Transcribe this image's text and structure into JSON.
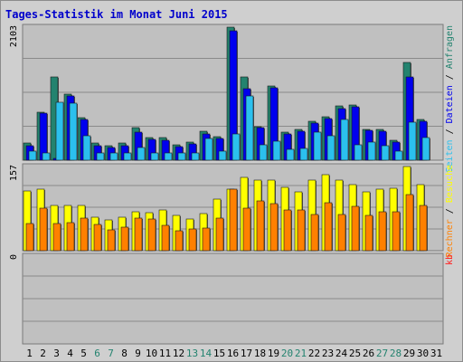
{
  "title": "Tages-Statistik im Monat Juni 2015",
  "colors": {
    "background": "#cfcfcf",
    "panel": "#c0c0c0",
    "title": "#0000cc",
    "grid": "#8a8a8a",
    "anfragen": "#23836f",
    "dateien": "#0000ee",
    "seiten": "#2bc0ee",
    "besuche": "#ffff00",
    "rechner": "#ff8000",
    "kb": "#ff2020",
    "weekend": "#23836f",
    "weekday": "#000000"
  },
  "chart_data": [
    {
      "type": "bar",
      "panel": "top",
      "scale_label": "2103",
      "ylim": [
        0,
        2103
      ],
      "grid": true,
      "side_legend": [
        {
          "label": "Anfragen",
          "color": "#23836f"
        },
        {
          "label": "Dateien",
          "color": "#0000ee"
        },
        {
          "label": "Seiten",
          "color": "#2bc0ee"
        }
      ],
      "separator": "/",
      "categories": [
        "1",
        "2",
        "3",
        "4",
        "5",
        "6",
        "7",
        "8",
        "9",
        "10",
        "11",
        "12",
        "13",
        "14",
        "15",
        "16",
        "17",
        "18",
        "19",
        "20",
        "21",
        "22",
        "23",
        "24",
        "25",
        "26",
        "27",
        "28",
        "29",
        "30",
        "31"
      ],
      "series": [
        {
          "name": "Anfragen",
          "values": [
            270,
            760,
            1310,
            1050,
            670,
            270,
            230,
            270,
            520,
            360,
            360,
            240,
            280,
            460,
            370,
            2103,
            1310,
            530,
            1170,
            440,
            490,
            620,
            690,
            860,
            870,
            490,
            490,
            320,
            1550,
            650,
            0
          ]
        },
        {
          "name": "Dateien",
          "values": [
            230,
            740,
            30,
            1010,
            640,
            230,
            200,
            230,
            440,
            330,
            310,
            210,
            260,
            420,
            350,
            2040,
            1130,
            510,
            1140,
            420,
            460,
            580,
            660,
            820,
            840,
            470,
            460,
            280,
            1320,
            610,
            0
          ]
        },
        {
          "name": "Seiten",
          "values": [
            150,
            110,
            920,
            900,
            380,
            110,
            110,
            110,
            200,
            110,
            110,
            110,
            110,
            340,
            140,
            420,
            1020,
            250,
            300,
            170,
            180,
            440,
            380,
            650,
            250,
            280,
            230,
            140,
            600,
            360,
            0
          ]
        }
      ]
    },
    {
      "type": "bar",
      "panel": "middle",
      "scale_label": "157",
      "ylim": [
        0,
        157
      ],
      "grid": true,
      "side_legend": [
        {
          "label": "Rechner",
          "color": "#ff8000"
        },
        {
          "label": "Besuche",
          "color": "#ffff00"
        }
      ],
      "separator": "/",
      "categories": [
        "1",
        "2",
        "3",
        "4",
        "5",
        "6",
        "7",
        "8",
        "9",
        "10",
        "11",
        "12",
        "13",
        "14",
        "15",
        "16",
        "17",
        "18",
        "19",
        "20",
        "21",
        "22",
        "23",
        "24",
        "25",
        "26",
        "27",
        "28",
        "29",
        "30",
        "31"
      ],
      "series": [
        {
          "name": "Besuche",
          "values": [
            111,
            115,
            84,
            84,
            84,
            62,
            58,
            63,
            73,
            71,
            76,
            66,
            59,
            70,
            96,
            115,
            137,
            132,
            131,
            119,
            109,
            132,
            142,
            132,
            123,
            110,
            115,
            116,
            157,
            124,
            0
          ]
        },
        {
          "name": "Rechner",
          "values": [
            51,
            79,
            50,
            53,
            61,
            49,
            38,
            44,
            60,
            59,
            47,
            37,
            40,
            42,
            60,
            115,
            80,
            93,
            87,
            76,
            76,
            67,
            90,
            67,
            83,
            66,
            73,
            72,
            105,
            84,
            0
          ]
        }
      ]
    },
    {
      "type": "bar",
      "panel": "bottom",
      "scale_label": "0",
      "ylim": [
        0,
        1
      ],
      "grid": true,
      "side_legend": [
        {
          "label": "kb",
          "color": "#ff2020"
        }
      ],
      "categories": [
        "1",
        "2",
        "3",
        "4",
        "5",
        "6",
        "7",
        "8",
        "9",
        "10",
        "11",
        "12",
        "13",
        "14",
        "15",
        "16",
        "17",
        "18",
        "19",
        "20",
        "21",
        "22",
        "23",
        "24",
        "25",
        "26",
        "27",
        "28",
        "29",
        "30",
        "31"
      ],
      "series": [
        {
          "name": "kb",
          "values": [
            0,
            0,
            0,
            0,
            0,
            0,
            0,
            0,
            0,
            0,
            0,
            0,
            0,
            0,
            0,
            0,
            0,
            0,
            0,
            0,
            0,
            0,
            0,
            0,
            0,
            0,
            0,
            0,
            0,
            0,
            0
          ]
        }
      ]
    }
  ],
  "day_labels": [
    {
      "text": "1",
      "weekend": false
    },
    {
      "text": "2",
      "weekend": false
    },
    {
      "text": "3",
      "weekend": false
    },
    {
      "text": "4",
      "weekend": false
    },
    {
      "text": "5",
      "weekend": false
    },
    {
      "text": "6",
      "weekend": true
    },
    {
      "text": "7",
      "weekend": true
    },
    {
      "text": "8",
      "weekend": false
    },
    {
      "text": "9",
      "weekend": false
    },
    {
      "text": "10",
      "weekend": false
    },
    {
      "text": "11",
      "weekend": false
    },
    {
      "text": "12",
      "weekend": false
    },
    {
      "text": "13",
      "weekend": true
    },
    {
      "text": "14",
      "weekend": true
    },
    {
      "text": "15",
      "weekend": false
    },
    {
      "text": "16",
      "weekend": false
    },
    {
      "text": "17",
      "weekend": false
    },
    {
      "text": "18",
      "weekend": false
    },
    {
      "text": "19",
      "weekend": false
    },
    {
      "text": "20",
      "weekend": true
    },
    {
      "text": "21",
      "weekend": true
    },
    {
      "text": "22",
      "weekend": false
    },
    {
      "text": "23",
      "weekend": false
    },
    {
      "text": "24",
      "weekend": false
    },
    {
      "text": "25",
      "weekend": false
    },
    {
      "text": "26",
      "weekend": false
    },
    {
      "text": "27",
      "weekend": true
    },
    {
      "text": "28",
      "weekend": true
    },
    {
      "text": "29",
      "weekend": false
    },
    {
      "text": "30",
      "weekend": false
    },
    {
      "text": "31",
      "weekend": false
    }
  ]
}
